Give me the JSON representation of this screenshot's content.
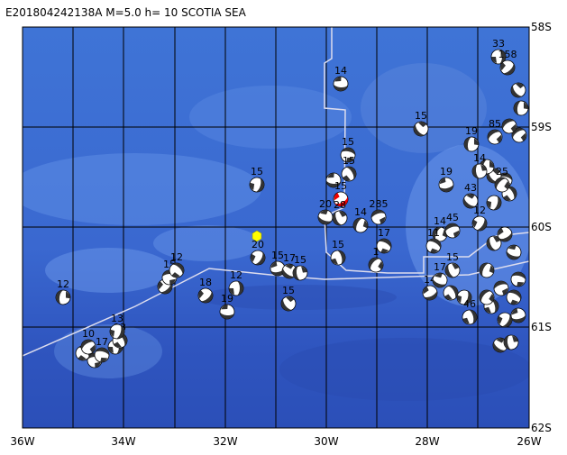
{
  "header": {
    "title": "E201804242138A  M=5.0  h= 10  SCOTIA SEA"
  },
  "axes": {
    "lon_labels": [
      "36W",
      "34W",
      "32W",
      "30W",
      "28W",
      "26W"
    ],
    "lat_labels": [
      "58S",
      "59S",
      "60S",
      "61S",
      "62S"
    ]
  },
  "events": [
    {
      "label": "33"
    },
    {
      "label": "158"
    },
    {
      "label": "14"
    },
    {
      "label": "15"
    },
    {
      "label": "19"
    },
    {
      "label": "85"
    },
    {
      "label": "15"
    },
    {
      "label": "15"
    },
    {
      "label": "15"
    },
    {
      "label": "15"
    },
    {
      "label": "20"
    },
    {
      "label": "28"
    },
    {
      "label": "14"
    },
    {
      "label": "285"
    },
    {
      "label": "17"
    },
    {
      "label": "15"
    },
    {
      "label": "20"
    },
    {
      "label": "15"
    },
    {
      "label": "17"
    },
    {
      "label": "15"
    },
    {
      "label": "1"
    },
    {
      "label": "15"
    },
    {
      "label": "12"
    },
    {
      "label": "12"
    },
    {
      "label": "18"
    },
    {
      "label": "19"
    },
    {
      "label": "15"
    },
    {
      "label": "12"
    },
    {
      "label": "10"
    },
    {
      "label": "17"
    },
    {
      "label": "13"
    },
    {
      "label": "13"
    },
    {
      "label": "14"
    },
    {
      "label": "17"
    },
    {
      "label": "15"
    },
    {
      "label": "14"
    },
    {
      "label": "45"
    },
    {
      "label": "11"
    },
    {
      "label": "46"
    },
    {
      "label": "12"
    },
    {
      "label": "19"
    },
    {
      "label": "43"
    },
    {
      "label": "14"
    },
    {
      "label": "25"
    }
  ]
}
